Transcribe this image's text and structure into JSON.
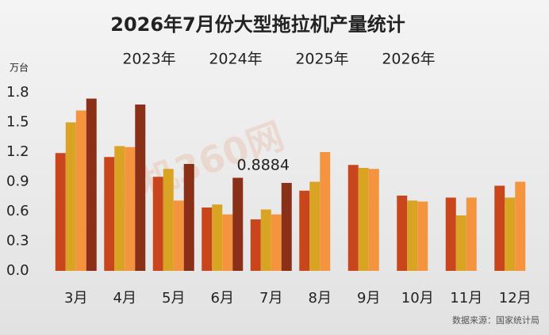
{
  "chart_data": {
    "type": "bar",
    "title": "2026年7月份大型拖拉机产量统计",
    "y_label": "万台",
    "source": "数据来源：国家统计局",
    "watermark": "农机360网",
    "categories": [
      "3月",
      "4月",
      "5月",
      "6月",
      "7月",
      "8月",
      "9月",
      "10月",
      "11月",
      "12月"
    ],
    "series": [
      {
        "name": "2023年",
        "color": "#c9461c",
        "values": [
          1.19,
          1.15,
          0.95,
          0.64,
          0.52,
          0.81,
          1.07,
          0.76,
          0.74,
          0.86
        ]
      },
      {
        "name": "2024年",
        "color": "#d9a423",
        "values": [
          1.5,
          1.26,
          1.03,
          0.67,
          0.62,
          0.9,
          1.04,
          0.71,
          0.56,
          0.74
        ]
      },
      {
        "name": "2025年",
        "color": "#f5943f",
        "values": [
          1.62,
          1.25,
          0.71,
          0.57,
          0.57,
          1.2,
          1.03,
          0.7,
          0.74,
          0.9
        ]
      },
      {
        "name": "2026年",
        "color": "#8b3018",
        "values": [
          1.74,
          1.68,
          1.08,
          0.94,
          0.8884,
          null,
          null,
          null,
          null,
          null
        ]
      }
    ],
    "annotated_point": [
      3,
      4
    ],
    "ylim": [
      0,
      1.8
    ],
    "yticks": [
      {
        "value": 0,
        "label": "0.0"
      },
      0.3,
      0.6,
      0.9,
      1.2,
      1.5,
      1.8
    ],
    "grid": false
  }
}
